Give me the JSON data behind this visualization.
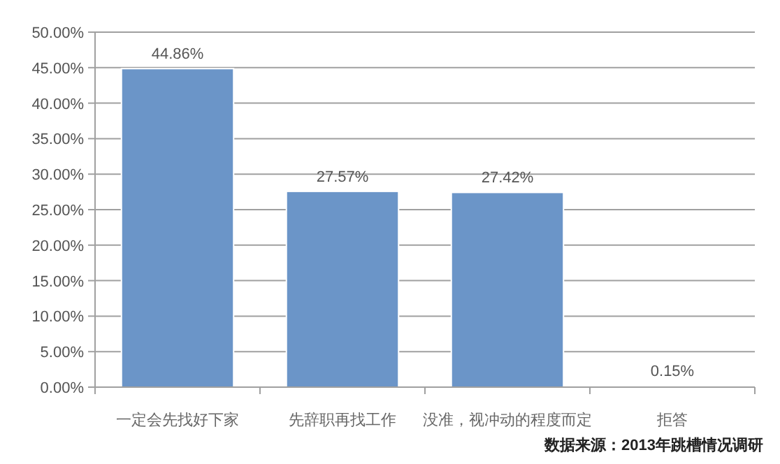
{
  "chart_data": {
    "type": "bar",
    "categories": [
      "一定会先找好下家",
      "先辞职再找工作",
      "没准，视冲动的程度而定",
      "拒答"
    ],
    "values": [
      44.86,
      27.57,
      27.42,
      0.15
    ],
    "value_labels": [
      "44.86%",
      "27.57%",
      "27.42%",
      "0.15%"
    ],
    "color": "#6b95c8",
    "ylim": [
      0,
      50
    ],
    "yticks": [
      {
        "value": 0,
        "label": "0.00%"
      },
      {
        "value": 5,
        "label": "5.00%"
      },
      {
        "value": 10,
        "label": "10.00%"
      },
      {
        "value": 15,
        "label": "15.00%"
      },
      {
        "value": 20,
        "label": "20.00%"
      },
      {
        "value": 25,
        "label": "25.00%"
      },
      {
        "value": 30,
        "label": "30.00%"
      },
      {
        "value": 35,
        "label": "35.00%"
      },
      {
        "value": 40,
        "label": "40.00%"
      },
      {
        "value": 45,
        "label": "45.00%"
      },
      {
        "value": 50,
        "label": "50.00%"
      }
    ],
    "grid": "y",
    "annotations": [
      "数据来源：2013年跳槽情况调研"
    ]
  }
}
